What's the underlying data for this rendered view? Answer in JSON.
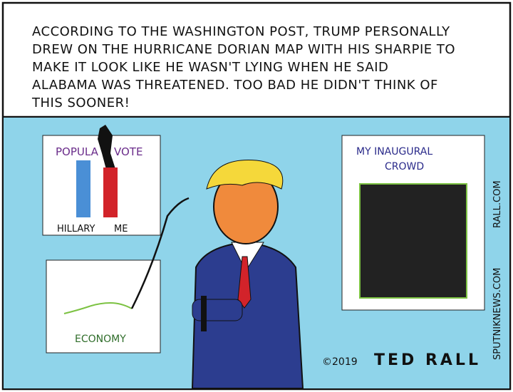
{
  "caption": {
    "lines": [
      "ACCORDING TO THE WASHINGTON POST, TRUMP PERSONALLY",
      "DREW ON THE HURRICANE DORIAN MAP WITH HIS SHARPIE TO",
      "MAKE IT LOOK LIKE HE WASN'T LYING WHEN HE SAID",
      "ALABAMA WAS THREATENED. TOO BAD HE DIDN'T THINK OF",
      "THIS SOONER!"
    ]
  },
  "posters": {
    "popular_vote": {
      "title_left": "POPULA",
      "title_right": "VOTE",
      "labels": [
        "HILLARY",
        "ME"
      ]
    },
    "economy": {
      "label": "ECONOMY"
    },
    "crowd": {
      "title": [
        "MY INAUGURAL",
        "CROWD"
      ]
    }
  },
  "credits": {
    "copyright": "©2019",
    "artist": "TED RALL",
    "site1": "SPUTNIKNEWS.COM",
    "site2": "RALL.COM"
  }
}
